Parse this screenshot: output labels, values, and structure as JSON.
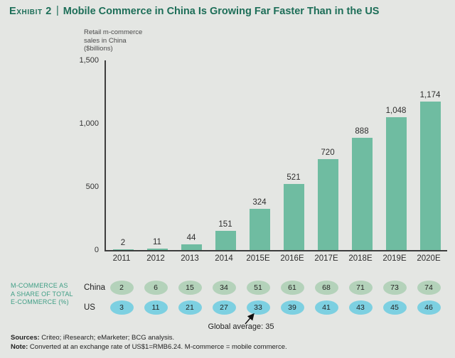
{
  "colors": {
    "background": "#e4e6e3",
    "title_green": "#1d6e58",
    "bar_green": "#6fbca1",
    "china_oval_green": "#b4d2ba",
    "us_oval_blue": "#7dd0e1",
    "table_label_teal": "#3f9e85",
    "axis_dark": "#3d3d3d"
  },
  "title": {
    "exhibit": "Exhibit 2",
    "separator": "|",
    "text": "Mobile Commerce in China Is Growing Far Faster Than in the US"
  },
  "chart_data": {
    "type": "bar",
    "title": "EXHIBIT 2 | Mobile Commerce in China Is Growing Far Faster Than in the US",
    "ylabel": "Retail m-commerce sales in China ($billions)",
    "ylabel_lines": [
      "Retail m-commerce",
      "sales in China",
      "($billions)"
    ],
    "categories": [
      "2011",
      "2012",
      "2013",
      "2014",
      "2015E",
      "2016E",
      "2017E",
      "2018E",
      "2019E",
      "2020E"
    ],
    "values": [
      2,
      11,
      44,
      151,
      324,
      521,
      720,
      888,
      1048,
      1174
    ],
    "value_labels": [
      "2",
      "11",
      "44",
      "151",
      "324",
      "521",
      "720",
      "888",
      "1,048",
      "1,174"
    ],
    "ylim": [
      0,
      1500
    ],
    "yticks": [
      0,
      500,
      1000,
      1500
    ],
    "ytick_labels": [
      "0",
      "500",
      "1,000",
      "1,500"
    ],
    "bar_color": "#6fbca1",
    "grid": false,
    "legend_position": "none"
  },
  "share_table": {
    "label_lines": [
      "M-COMMERCE AS",
      "A SHARE OF TOTAL",
      "E-COMMERCE (%)"
    ],
    "rows": [
      {
        "name": "China",
        "values": [
          2,
          6,
          15,
          34,
          51,
          61,
          68,
          71,
          73,
          74
        ],
        "color": "#b4d2ba"
      },
      {
        "name": "US",
        "values": [
          3,
          11,
          21,
          27,
          33,
          39,
          41,
          43,
          45,
          46
        ],
        "color": "#7dd0e1"
      }
    ],
    "annotation": "Global average: 35"
  },
  "footer": {
    "sources_label": "Sources:",
    "sources_text": " Criteo; iResearch; eMarketer; BCG analysis.",
    "note_label": "Note:",
    "note_text": " Converted at an exchange rate of US$1=RMB6.24. M-commerce = mobile commerce."
  }
}
